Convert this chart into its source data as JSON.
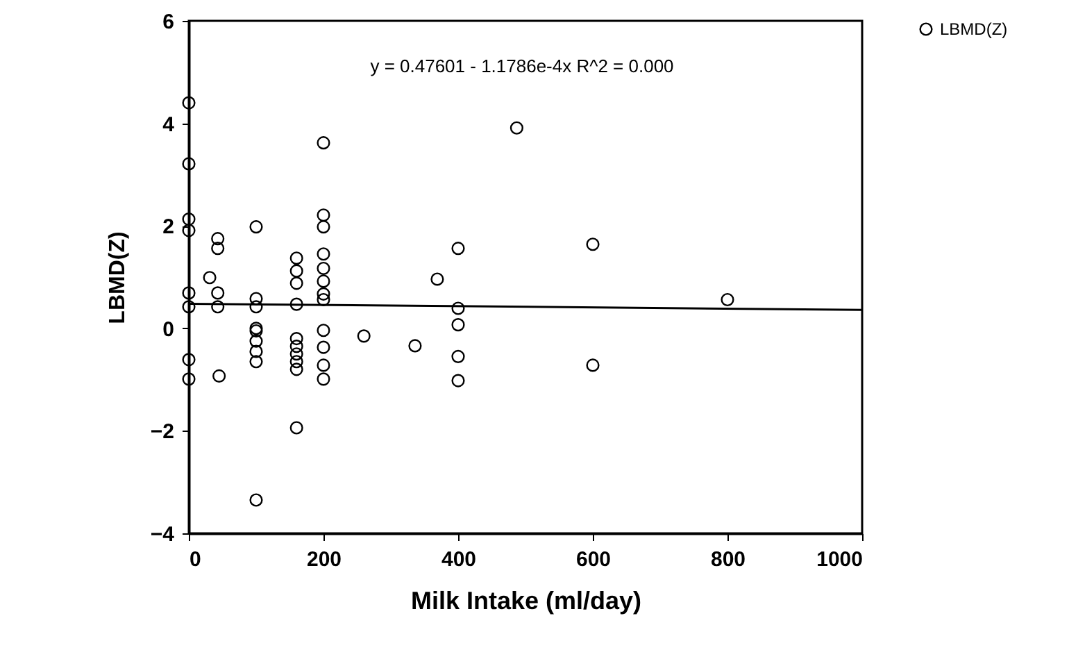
{
  "chart_data": {
    "type": "scatter",
    "xlabel": "Milk Intake (ml/day)",
    "ylabel": "LBMD(Z)",
    "annotations": [
      "y = 0.47601 - 1.1786e-4x    R^2 = 0.000"
    ],
    "xlim": [
      0,
      1000
    ],
    "xticks": [
      0,
      200,
      400,
      600,
      800,
      1000
    ],
    "ylim": [
      -4,
      6
    ],
    "yticks": [
      -4,
      -2,
      0,
      2,
      4,
      6
    ],
    "grid": false,
    "legend": "right",
    "series": [
      {
        "name": "LBMD(Z)",
        "color": "#000000",
        "marker": "circle",
        "x": [
          0,
          0,
          0,
          0,
          0,
          0,
          0,
          0,
          43,
          43,
          43,
          43,
          45,
          31,
          100,
          100,
          100,
          100,
          100,
          100,
          100,
          100,
          100,
          160,
          160,
          160,
          160,
          160,
          160,
          160,
          160,
          160,
          160,
          200,
          200,
          200,
          200,
          200,
          200,
          200,
          200,
          200,
          200,
          200,
          200,
          260,
          336,
          369,
          487,
          400,
          400,
          400,
          400,
          400,
          600,
          600,
          800
        ],
        "values": [
          4.4,
          3.21,
          2.13,
          1.91,
          0.69,
          0.42,
          -0.61,
          -0.99,
          1.75,
          1.56,
          0.69,
          0.42,
          -0.93,
          0.99,
          1.98,
          0.58,
          0.42,
          -0.05,
          -0.25,
          -0.45,
          -0.65,
          -3.35,
          0.0,
          1.37,
          1.12,
          0.88,
          0.47,
          -0.2,
          -0.35,
          -0.5,
          -0.65,
          -0.8,
          -1.94,
          3.62,
          2.21,
          1.98,
          1.45,
          1.17,
          0.92,
          0.67,
          -0.04,
          -0.37,
          -0.72,
          -0.99,
          0.56,
          -0.15,
          -0.34,
          0.96,
          3.91,
          1.56,
          0.39,
          0.07,
          -0.55,
          -1.02,
          1.64,
          -0.72,
          0.56
        ]
      },
      {
        "type": "line",
        "color": "#000000",
        "x": [
          0,
          1000
        ],
        "values": [
          0.48,
          0.36
        ]
      }
    ]
  }
}
